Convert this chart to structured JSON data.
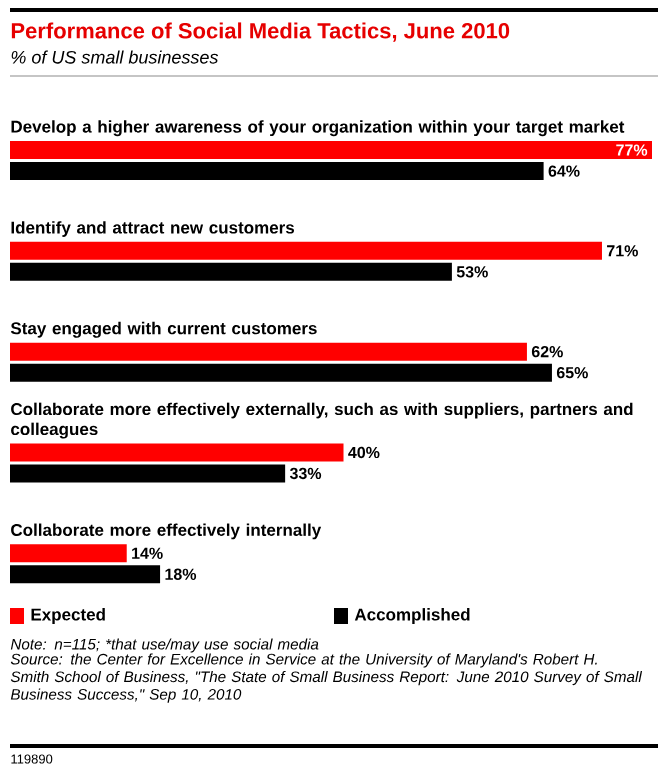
{
  "chart_data": {
    "type": "bar",
    "orientation": "horizontal",
    "title": "Performance of Social Media Tactics, June 2010",
    "subtitle": "% of US small businesses",
    "categories": [
      "Develop a higher awareness of your organization within your target market",
      "Identify and attract new customers",
      "Stay engaged with current customers",
      "Collaborate more effectively externally, such as with suppliers, partners and colleagues",
      "Collaborate more effectively internally"
    ],
    "series": [
      {
        "name": "Expected",
        "color": "#ff0000",
        "values": [
          77,
          71,
          62,
          40,
          14
        ],
        "value_labels": [
          "77%",
          "71%",
          "62%",
          "40%",
          "14%"
        ]
      },
      {
        "name": "Accomplished",
        "color": "#000000",
        "values": [
          64,
          53,
          65,
          33,
          18
        ],
        "value_labels": [
          "64%",
          "53%",
          "65%",
          "33%",
          "18%"
        ]
      }
    ],
    "legend": "bottom",
    "annotations": [
      "Note: n=115; *that use/may use social media",
      "Source: the Center for Excellence in Service at the University of Maryland's Robert H. Smith School of Business, \"The State of Small Business Report: June 2010 Survey of Small Business Success,\" Sep 10, 2010",
      "119890"
    ]
  }
}
